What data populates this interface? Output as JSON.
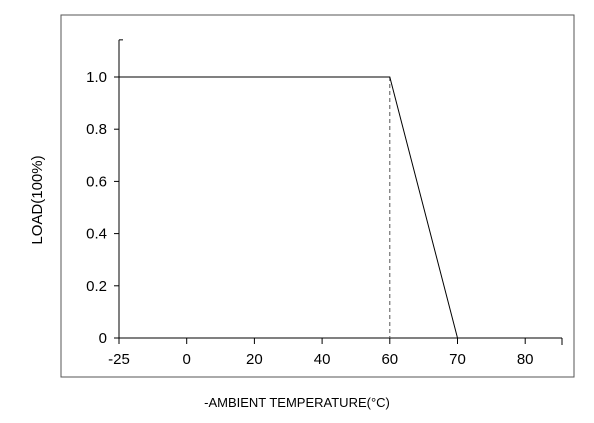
{
  "chart_data": {
    "type": "line",
    "xlabel": "-AMBIENT TEMPERATURE(°C)",
    "ylabel": "LOAD(100%)",
    "x_tick_labels": [
      "-25",
      "0",
      "20",
      "40",
      "60",
      "70",
      "80"
    ],
    "x_tick_values": [
      -25,
      0,
      20,
      40,
      60,
      70,
      80
    ],
    "y_tick_labels": [
      "0",
      "0.2",
      "0.4",
      "0.6",
      "0.8",
      "1.0"
    ],
    "y_tick_values": [
      0,
      0.2,
      0.4,
      0.6,
      0.8,
      1.0
    ],
    "xlim": [
      -25,
      85
    ],
    "ylim": [
      0,
      1.15
    ],
    "grid": false,
    "series": [
      {
        "x": [
          -25,
          60,
          70
        ],
        "y": [
          1.0,
          1.0,
          0
        ]
      }
    ],
    "reference_lines": [
      {
        "orientation": "vertical",
        "x": 60,
        "y_range": [
          0,
          1.0
        ],
        "style": "dashed"
      }
    ],
    "colors": {
      "line": "#000000",
      "frame": "#555555",
      "axis": "#000000",
      "dashed": "#555555"
    }
  }
}
